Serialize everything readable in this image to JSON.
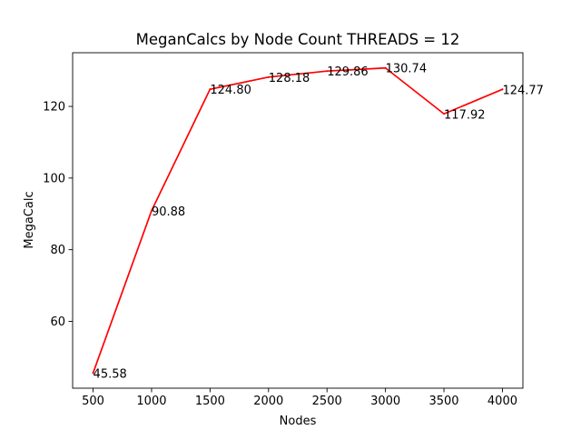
{
  "chart_data": {
    "type": "line",
    "title": "MeganCalcs by Node Count THREADS = 12",
    "xlabel": "Nodes",
    "ylabel": "MegaCalc",
    "x": [
      500,
      1000,
      1500,
      2000,
      2500,
      3000,
      3500,
      4000
    ],
    "series": [
      {
        "values": [
          45.58,
          90.88,
          124.8,
          128.18,
          129.86,
          130.74,
          117.92,
          124.77
        ],
        "color": "#ff0000"
      }
    ],
    "data_labels": [
      "45.58",
      "90.88",
      "124.80",
      "128.18",
      "129.86",
      "130.74",
      "117.92",
      "124.77"
    ],
    "xticks": [
      500,
      1000,
      1500,
      2000,
      2500,
      3000,
      3500,
      4000
    ],
    "xtick_labels": [
      "500",
      "1000",
      "1500",
      "2000",
      "2500",
      "3000",
      "3500",
      "4000"
    ],
    "yticks": [
      60,
      80,
      100,
      120
    ],
    "ytick_labels": [
      "60",
      "80",
      "100",
      "120"
    ],
    "xlim": [
      325,
      4175
    ],
    "ylim": [
      41.33,
      134.99
    ],
    "grid": false,
    "legend": false
  }
}
